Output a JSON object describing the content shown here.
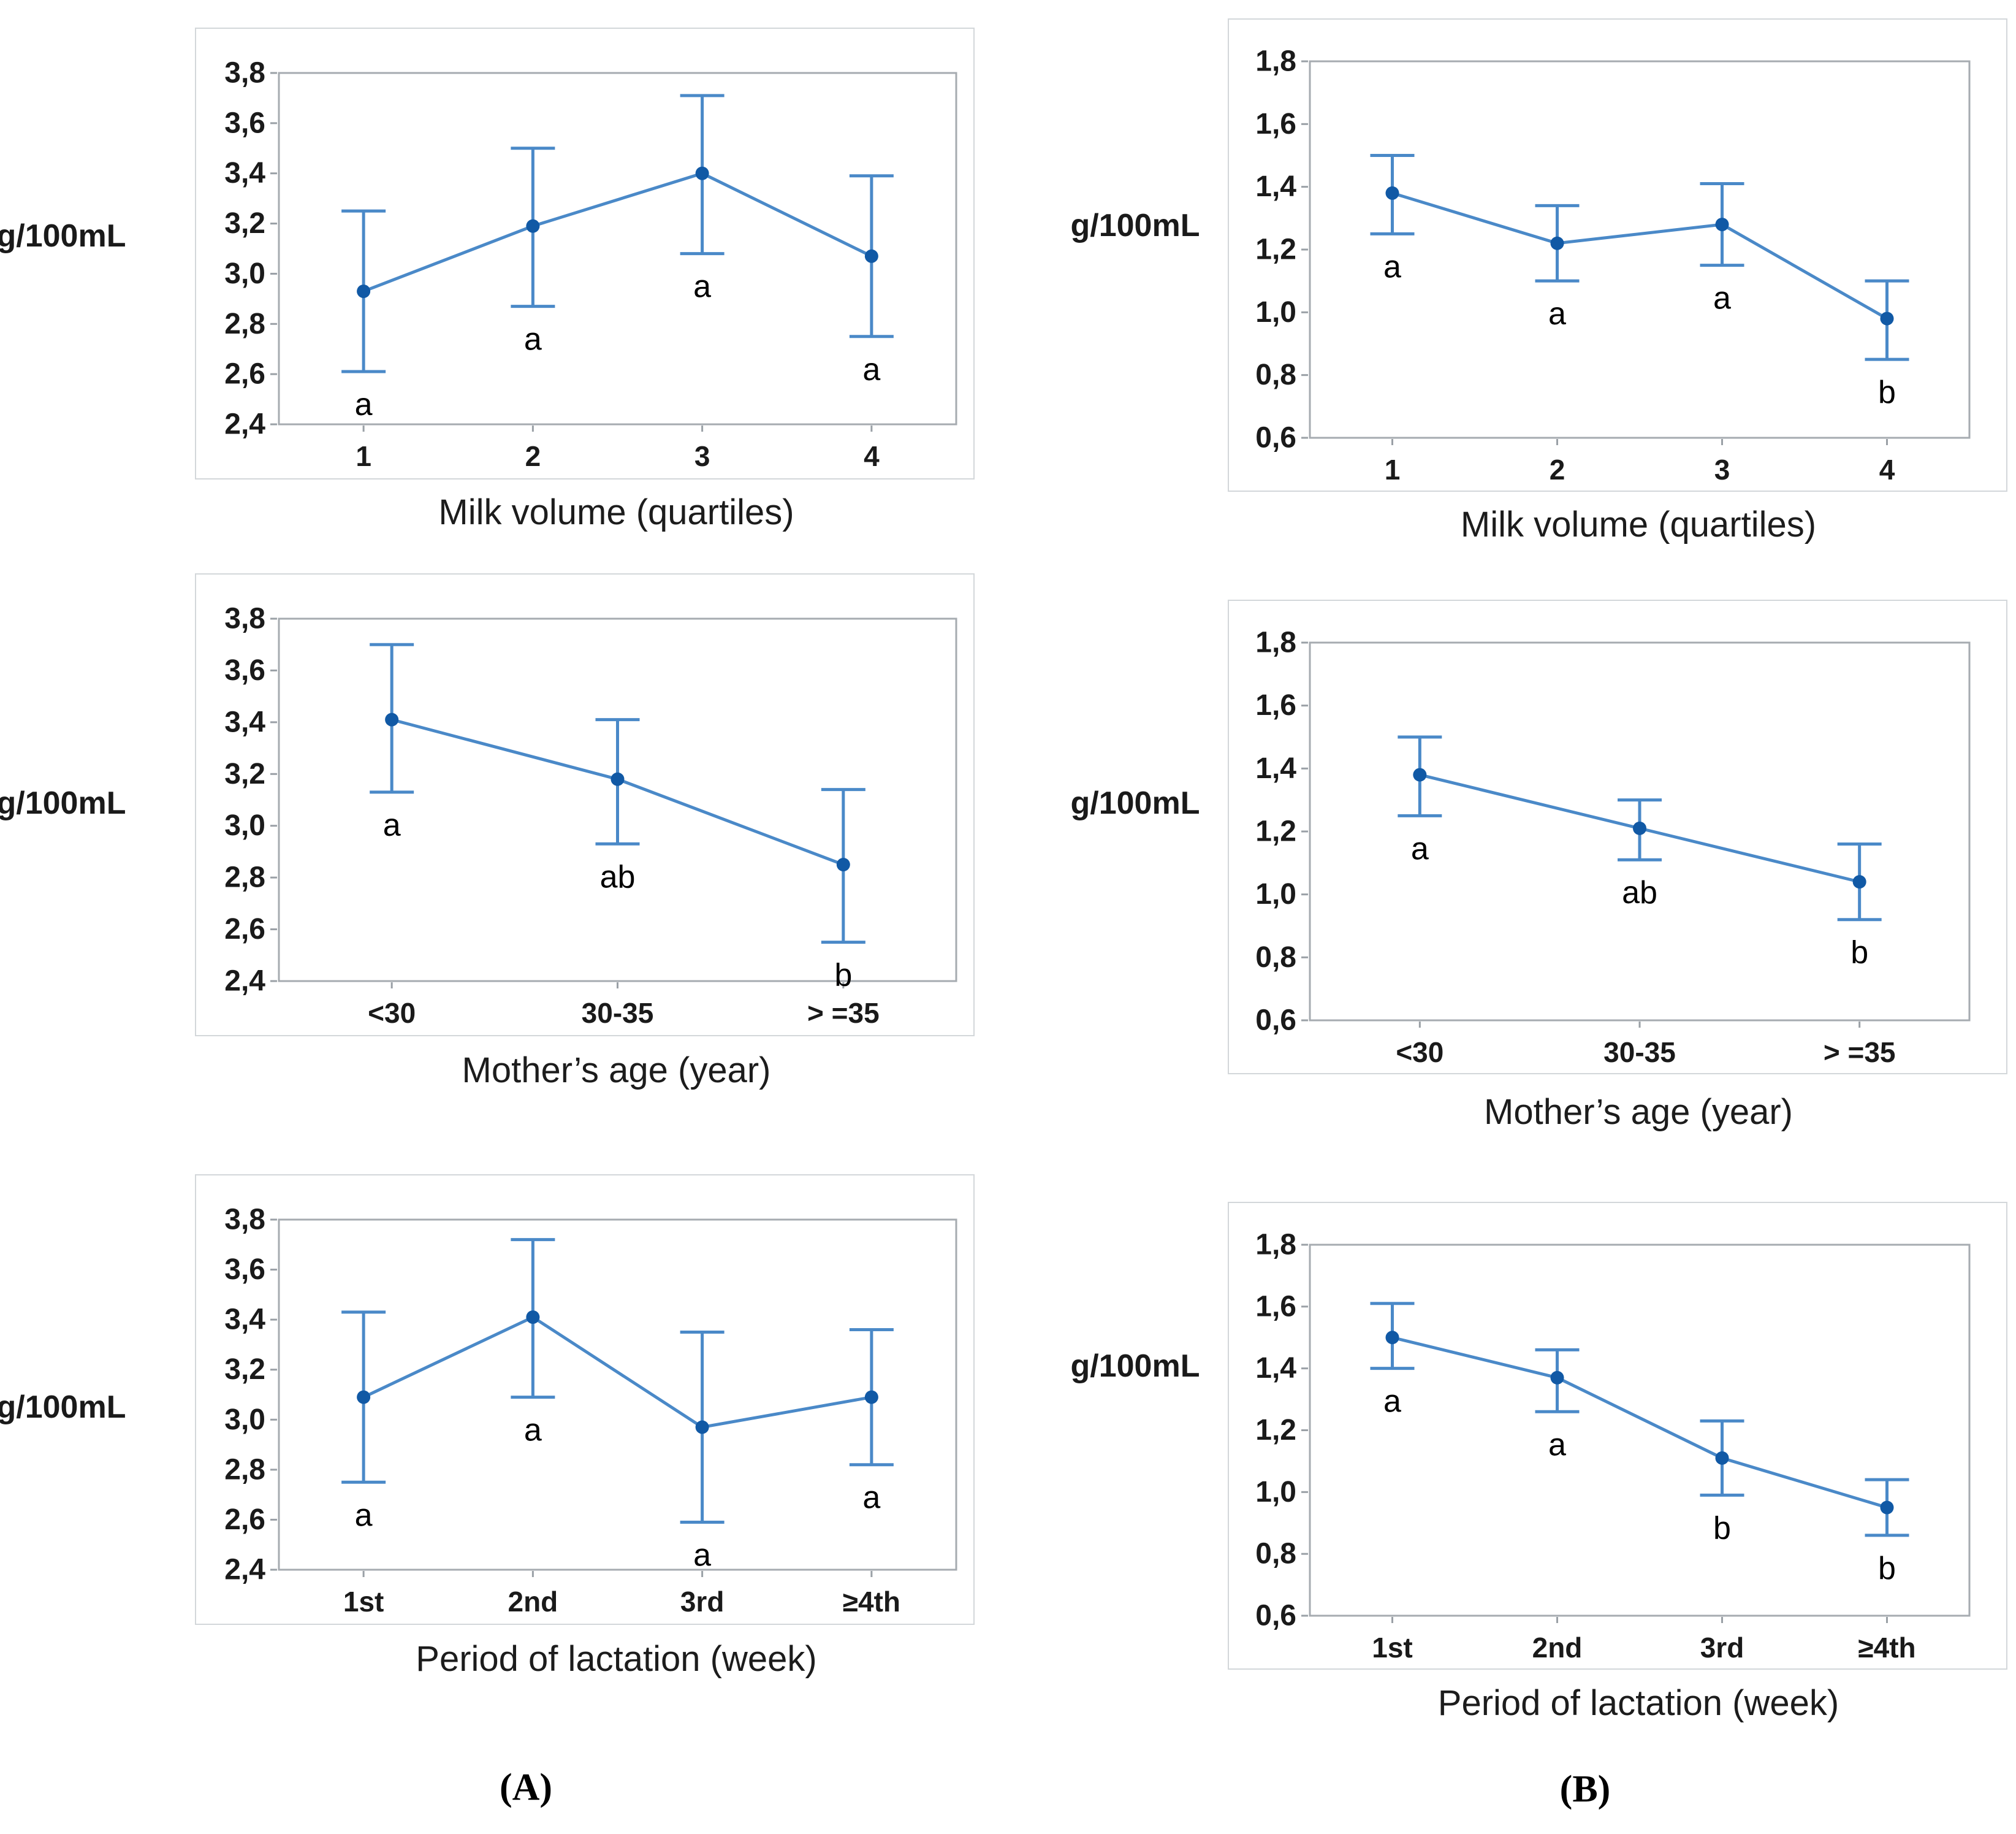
{
  "captions": {
    "a": "(A)",
    "b": "(B)"
  },
  "colors": {
    "series_line": "#4a89c8",
    "error_bar": "#4a89c8",
    "marker": "#1159a5",
    "plot_frame": "#a6abb0",
    "tick_mark": "#9aa0a6",
    "panel_border": "#d3d7da",
    "text": "#1a1a1a"
  },
  "chart_data": [
    {
      "type": "line",
      "panel": "A",
      "title": "Milk volume (quartiles)",
      "ylabel": "g/100mL",
      "categories": [
        "1",
        "2",
        "3",
        "4"
      ],
      "values": [
        2.93,
        3.19,
        3.4,
        3.07
      ],
      "err_low": [
        2.61,
        2.87,
        3.08,
        2.75
      ],
      "err_high": [
        3.25,
        3.5,
        3.71,
        3.39
      ],
      "sig_letters": [
        "a",
        "a",
        "a",
        "a"
      ],
      "ylim": [
        2.4,
        3.8
      ],
      "ytick_step": 0.2,
      "ytick_labels": [
        "3,8",
        "3,6",
        "3,4",
        "3,2",
        "3,0",
        "2,8",
        "2,6",
        "2,4"
      ],
      "grid": "off",
      "legend": "none",
      "error_bars": true
    },
    {
      "type": "line",
      "panel": "A",
      "title": "Mother’s age (year)",
      "ylabel": "g/100mL",
      "categories": [
        "<30",
        "30-35",
        "> =35"
      ],
      "values": [
        3.41,
        3.18,
        2.85
      ],
      "err_low": [
        3.13,
        2.93,
        2.55
      ],
      "err_high": [
        3.7,
        3.41,
        3.14
      ],
      "sig_letters": [
        "a",
        "ab",
        "b"
      ],
      "ylim": [
        2.4,
        3.8
      ],
      "ytick_step": 0.2,
      "ytick_labels": [
        "3,8",
        "3,6",
        "3,4",
        "3,2",
        "3,0",
        "2,8",
        "2,6",
        "2,4"
      ],
      "grid": "off",
      "legend": "none",
      "error_bars": true
    },
    {
      "type": "line",
      "panel": "A",
      "title": "Period of lactation (week)",
      "ylabel": "g/100mL",
      "categories": [
        "1st",
        "2nd",
        "3rd",
        "≥4th"
      ],
      "values": [
        3.09,
        3.41,
        2.97,
        3.09
      ],
      "err_low": [
        2.75,
        3.09,
        2.59,
        2.82
      ],
      "err_high": [
        3.43,
        3.72,
        3.35,
        3.36
      ],
      "sig_letters": [
        "a",
        "a",
        "a",
        "a"
      ],
      "ylim": [
        2.4,
        3.8
      ],
      "ytick_step": 0.2,
      "ytick_labels": [
        "3,8",
        "3,6",
        "3,4",
        "3,2",
        "3,0",
        "2,8",
        "2,6",
        "2,4"
      ],
      "grid": "off",
      "legend": "none",
      "error_bars": true
    },
    {
      "type": "line",
      "panel": "B",
      "title": "Milk volume (quartiles)",
      "ylabel": "g/100mL",
      "categories": [
        "1",
        "2",
        "3",
        "4"
      ],
      "values": [
        1.38,
        1.22,
        1.28,
        0.98
      ],
      "err_low": [
        1.25,
        1.1,
        1.15,
        0.85
      ],
      "err_high": [
        1.5,
        1.34,
        1.41,
        1.1
      ],
      "sig_letters": [
        "a",
        "a",
        "a",
        "b"
      ],
      "ylim": [
        0.6,
        1.8
      ],
      "ytick_step": 0.2,
      "ytick_labels": [
        "1,8",
        "1,6",
        "1,4",
        "1,2",
        "1,0",
        "0,8",
        "0,6"
      ],
      "grid": "off",
      "legend": "none",
      "error_bars": true
    },
    {
      "type": "line",
      "panel": "B",
      "title": "Mother’s age (year)",
      "ylabel": "g/100mL",
      "categories": [
        "<30",
        "30-35",
        "> =35"
      ],
      "values": [
        1.38,
        1.21,
        1.04
      ],
      "err_low": [
        1.25,
        1.11,
        0.92
      ],
      "err_high": [
        1.5,
        1.3,
        1.16
      ],
      "sig_letters": [
        "a",
        "ab",
        "b"
      ],
      "ylim": [
        0.6,
        1.8
      ],
      "ytick_step": 0.2,
      "ytick_labels": [
        "1,8",
        "1,6",
        "1,4",
        "1,2",
        "1,0",
        "0,8",
        "0,6"
      ],
      "grid": "off",
      "legend": "none",
      "error_bars": true
    },
    {
      "type": "line",
      "panel": "B",
      "title": "Period of lactation (week)",
      "ylabel": "g/100mL",
      "categories": [
        "1st",
        "2nd",
        "3rd",
        "≥4th"
      ],
      "values": [
        1.5,
        1.37,
        1.11,
        0.95
      ],
      "err_low": [
        1.4,
        1.26,
        0.99,
        0.86
      ],
      "err_high": [
        1.61,
        1.46,
        1.23,
        1.04
      ],
      "sig_letters": [
        "a",
        "a",
        "b",
        "b"
      ],
      "ylim": [
        0.6,
        1.8
      ],
      "ytick_step": 0.2,
      "ytick_labels": [
        "1,8",
        "1,6",
        "1,4",
        "1,2",
        "1,0",
        "0,8",
        "0,6"
      ],
      "grid": "off",
      "legend": "none",
      "error_bars": true
    }
  ]
}
